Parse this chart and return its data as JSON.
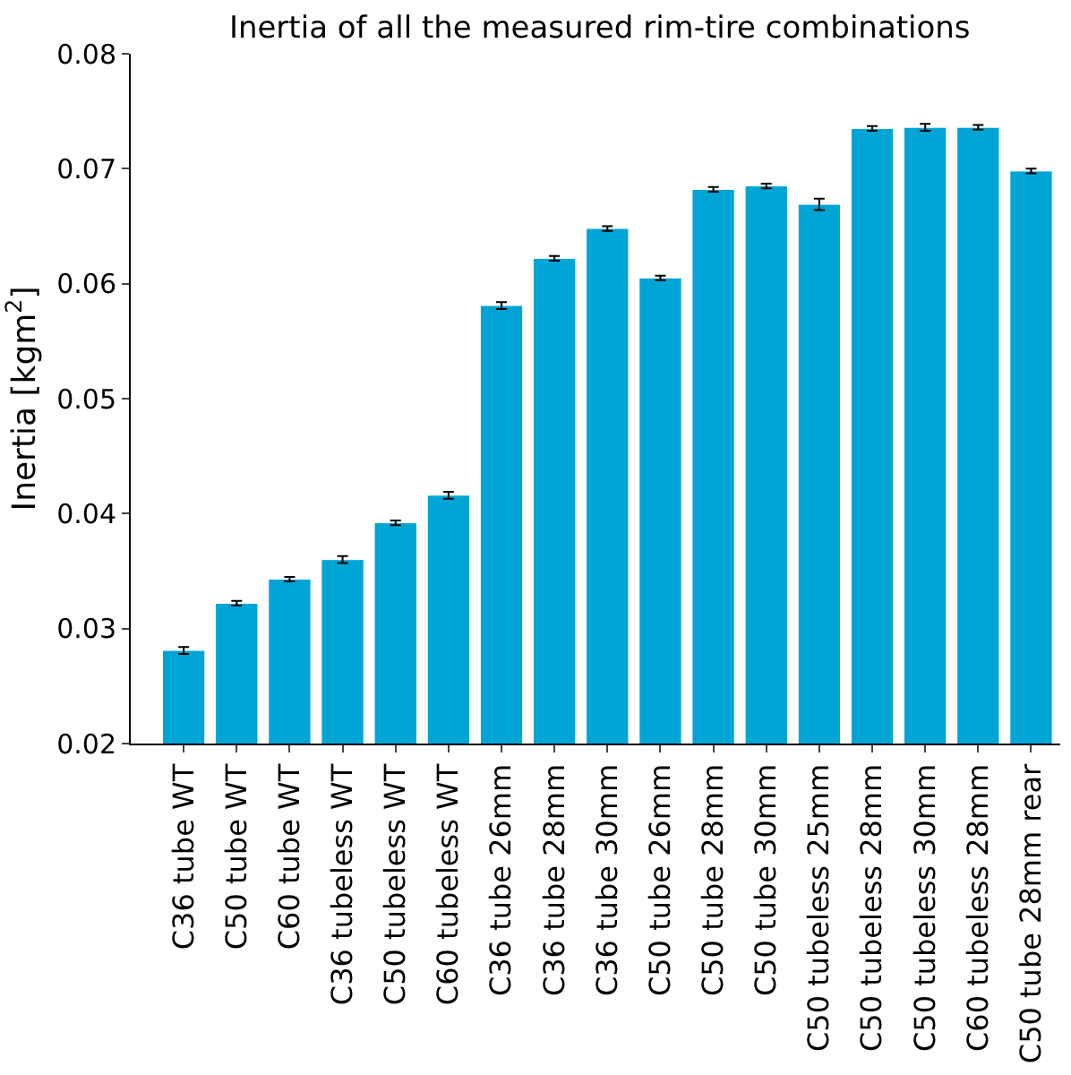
{
  "chart_data": {
    "type": "bar",
    "title": "Inertia of all the measured rim-tire combinations",
    "ylabel": "Inertia [kgm$^{2}$]",
    "categories": [
      "C36 tube WT",
      "C50 tube WT",
      "C60 tube WT",
      "C36 tubeless WT",
      "C50 tubeless WT",
      "C60 tubeless WT",
      "C36 tube 26mm",
      "C36 tube 28mm",
      "C36 tube 30mm",
      "C50 tube 26mm",
      "C50 tube 28mm",
      "C50 tube 30mm",
      "C50 tubeless 25mm",
      "C50 tubeless 28mm",
      "C50 tubeless 30mm",
      "C60 tubeless 28mm",
      "C50 tube 28mm rear"
    ],
    "values": [
      0.0281,
      0.0322,
      0.0343,
      0.036,
      0.0392,
      0.0416,
      0.0581,
      0.0622,
      0.0648,
      0.0605,
      0.0682,
      0.0685,
      0.0669,
      0.0735,
      0.0736,
      0.0736,
      0.0698
    ],
    "errors": [
      0.0003,
      0.0002,
      0.0002,
      0.0003,
      0.0002,
      0.0003,
      0.0003,
      0.0002,
      0.0002,
      0.0002,
      0.0002,
      0.0002,
      0.0005,
      0.0002,
      0.0003,
      0.0002,
      0.0002
    ],
    "color": "#00a5d5",
    "ylim": [
      0.02,
      0.08
    ],
    "yticks": [
      0.02,
      0.03,
      0.04,
      0.05,
      0.06,
      0.07,
      0.08
    ]
  }
}
